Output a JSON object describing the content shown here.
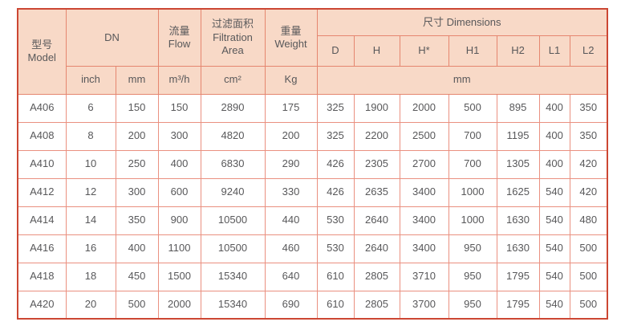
{
  "table": {
    "header": {
      "model_cn": "型号",
      "model_en": "Model",
      "dn": "DN",
      "flow_cn": "流量",
      "flow_en": "Flow",
      "filtration_cn": "过滤面积",
      "filtration_en1": "Filtration",
      "filtration_en2": "Area",
      "weight_cn": "重量",
      "weight_en": "Weight",
      "dimensions": "尺寸 Dimensions",
      "dim_cols": [
        "D",
        "H",
        "H*",
        "H1",
        "H2",
        "L1",
        "L2"
      ],
      "unit_inch": "inch",
      "unit_mm": "mm",
      "unit_flow": "m³/h",
      "unit_area": "cm²",
      "unit_weight": "Kg",
      "unit_dims": "mm"
    },
    "columns_key": [
      "model",
      "inch",
      "mm",
      "flow",
      "area",
      "weight",
      "d",
      "h",
      "h_star",
      "h1",
      "h2",
      "l1",
      "l2"
    ],
    "rows": [
      {
        "model": "A406",
        "inch": "6",
        "mm": "150",
        "flow": "150",
        "area": "2890",
        "weight": "175",
        "d": "325",
        "h": "1900",
        "h_star": "2000",
        "h1": "500",
        "h2": "895",
        "l1": "400",
        "l2": "350"
      },
      {
        "model": "A408",
        "inch": "8",
        "mm": "200",
        "flow": "300",
        "area": "4820",
        "weight": "200",
        "d": "325",
        "h": "2200",
        "h_star": "2500",
        "h1": "700",
        "h2": "1195",
        "l1": "400",
        "l2": "350"
      },
      {
        "model": "A410",
        "inch": "10",
        "mm": "250",
        "flow": "400",
        "area": "6830",
        "weight": "290",
        "d": "426",
        "h": "2305",
        "h_star": "2700",
        "h1": "700",
        "h2": "1305",
        "l1": "400",
        "l2": "420"
      },
      {
        "model": "A412",
        "inch": "12",
        "mm": "300",
        "flow": "600",
        "area": "9240",
        "weight": "330",
        "d": "426",
        "h": "2635",
        "h_star": "3400",
        "h1": "1000",
        "h2": "1625",
        "l1": "540",
        "l2": "420"
      },
      {
        "model": "A414",
        "inch": "14",
        "mm": "350",
        "flow": "900",
        "area": "10500",
        "weight": "440",
        "d": "530",
        "h": "2640",
        "h_star": "3400",
        "h1": "1000",
        "h2": "1630",
        "l1": "540",
        "l2": "480"
      },
      {
        "model": "A416",
        "inch": "16",
        "mm": "400",
        "flow": "1100",
        "area": "10500",
        "weight": "460",
        "d": "530",
        "h": "2640",
        "h_star": "3400",
        "h1": "950",
        "h2": "1630",
        "l1": "540",
        "l2": "500"
      },
      {
        "model": "A418",
        "inch": "18",
        "mm": "450",
        "flow": "1500",
        "area": "15340",
        "weight": "640",
        "d": "610",
        "h": "2805",
        "h_star": "3710",
        "h1": "950",
        "h2": "1795",
        "l1": "540",
        "l2": "500"
      },
      {
        "model": "A420",
        "inch": "20",
        "mm": "500",
        "flow": "2000",
        "area": "15340",
        "weight": "690",
        "d": "610",
        "h": "2805",
        "h_star": "3700",
        "h1": "950",
        "h2": "1795",
        "l1": "540",
        "l2": "500"
      }
    ]
  }
}
